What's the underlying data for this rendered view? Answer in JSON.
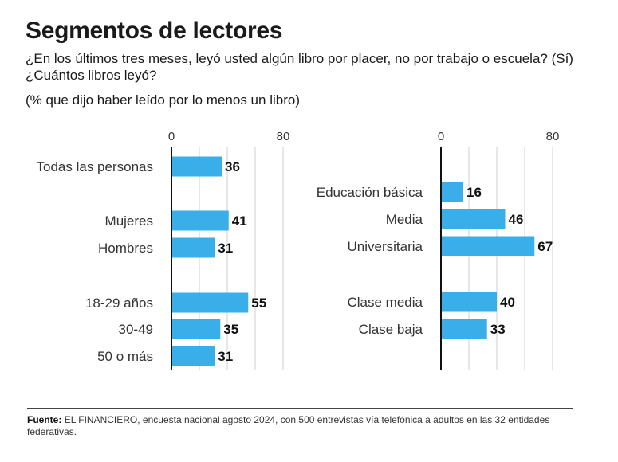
{
  "title": "Segmentos de lectores",
  "subtitle": "¿En los últimos tres meses, leyó usted algún libro por placer, no por trabajo o escuela? (Sí) ¿Cuántos libros leyó?",
  "note": "(% que dijo haber leído por lo menos un libro)",
  "footer": {
    "label": "Fuente:",
    "text": "EL FINANCIERO, encuesta nacional agosto 2024, con 500 entrevistas vía telefónica a adultos en las 32 entidades federativas."
  },
  "colors": {
    "bar": "#3aaee8",
    "grid": "#cfcfcf",
    "axis": "#111111"
  },
  "chart_data": [
    {
      "type": "bar",
      "orientation": "horizontal",
      "xlim": [
        0,
        80
      ],
      "ticks": [
        "0",
        "80"
      ],
      "groups": [
        {
          "categories": [
            "Todas las personas"
          ],
          "values": [
            36
          ]
        },
        {
          "categories": [
            "Mujeres",
            "Hombres"
          ],
          "values": [
            41,
            31
          ]
        },
        {
          "categories": [
            "18-29 años",
            "30-49",
            "50 o más"
          ],
          "values": [
            55,
            35,
            31
          ]
        }
      ]
    },
    {
      "type": "bar",
      "orientation": "horizontal",
      "xlim": [
        0,
        80
      ],
      "ticks": [
        "0",
        "80"
      ],
      "groups": [
        {
          "categories": [
            "Educación básica",
            "Media",
            "Universitaria"
          ],
          "values": [
            16,
            46,
            67
          ]
        },
        {
          "categories": [
            "Clase media",
            "Clase baja"
          ],
          "values": [
            40,
            33
          ]
        }
      ]
    }
  ]
}
